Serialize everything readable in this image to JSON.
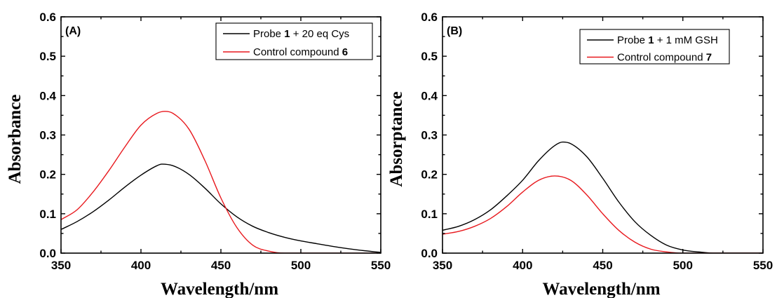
{
  "chart_data": [
    {
      "type": "line",
      "panel_label": "(A)",
      "xlabel": "Wavelength/nm",
      "ylabel": "Absorbance",
      "xlim": [
        350,
        550
      ],
      "ylim": [
        0,
        0.6
      ],
      "xticks": [
        "350",
        "400",
        "450",
        "500",
        "550"
      ],
      "yticks": [
        "0.0",
        "0.1",
        "0.2",
        "0.3",
        "0.4",
        "0.5",
        "0.6"
      ],
      "legend_position": "top-right",
      "grid": false,
      "series": [
        {
          "name": "Probe 1 + 20 eq Cys",
          "legend_prefix": "Probe ",
          "legend_bold": "1",
          "legend_suffix": " + 20 eq Cys",
          "color": "#000000",
          "x": [
            350,
            360,
            370,
            380,
            390,
            400,
            410,
            413,
            420,
            430,
            440,
            450,
            460,
            470,
            480,
            490,
            500,
            510,
            520,
            530,
            540,
            550
          ],
          "values": [
            0.06,
            0.08,
            0.105,
            0.135,
            0.168,
            0.198,
            0.222,
            0.226,
            0.222,
            0.2,
            0.165,
            0.125,
            0.092,
            0.068,
            0.052,
            0.04,
            0.031,
            0.024,
            0.017,
            0.011,
            0.006,
            0.002
          ]
        },
        {
          "name": "Control compound 6",
          "legend_prefix": "Control compound ",
          "legend_bold": "6",
          "legend_suffix": "",
          "color": "#e8191e",
          "x": [
            350,
            360,
            370,
            380,
            390,
            400,
            410,
            415,
            420,
            430,
            440,
            450,
            460,
            470,
            480,
            490,
            500,
            550
          ],
          "values": [
            0.085,
            0.11,
            0.155,
            0.21,
            0.27,
            0.325,
            0.355,
            0.36,
            0.355,
            0.315,
            0.235,
            0.14,
            0.065,
            0.02,
            0.005,
            0.0,
            0.0,
            0.0
          ]
        }
      ]
    },
    {
      "type": "line",
      "panel_label": "(B)",
      "xlabel": "Wavelength/nm",
      "ylabel": "Absorptance",
      "xlim": [
        350,
        550
      ],
      "ylim": [
        0,
        0.6
      ],
      "xticks": [
        "350",
        "400",
        "450",
        "500",
        "550"
      ],
      "yticks": [
        "0.0",
        "0.1",
        "0.2",
        "0.3",
        "0.4",
        "0.5",
        "0.6"
      ],
      "legend_position": "top-right",
      "grid": false,
      "series": [
        {
          "name": "Probe 1 + 1 mM GSH",
          "legend_prefix": "Probe ",
          "legend_bold": "1",
          "legend_suffix": " + 1 mM GSH",
          "color": "#000000",
          "x": [
            350,
            360,
            370,
            380,
            390,
            400,
            410,
            420,
            425,
            430,
            440,
            450,
            460,
            470,
            480,
            490,
            500,
            510,
            520,
            530,
            550
          ],
          "values": [
            0.058,
            0.068,
            0.085,
            0.11,
            0.145,
            0.185,
            0.235,
            0.273,
            0.282,
            0.278,
            0.245,
            0.19,
            0.13,
            0.08,
            0.045,
            0.02,
            0.008,
            0.003,
            0.0,
            0.0,
            0.0
          ]
        },
        {
          "name": "Control compound 7",
          "legend_prefix": "Control compound ",
          "legend_bold": "7",
          "legend_suffix": "",
          "color": "#e8191e",
          "x": [
            350,
            360,
            370,
            380,
            390,
            400,
            410,
            420,
            430,
            440,
            450,
            460,
            470,
            480,
            490,
            500,
            510,
            550
          ],
          "values": [
            0.048,
            0.055,
            0.068,
            0.088,
            0.118,
            0.155,
            0.185,
            0.196,
            0.185,
            0.148,
            0.1,
            0.058,
            0.028,
            0.01,
            0.003,
            0.0,
            0.0,
            0.0
          ]
        }
      ]
    }
  ]
}
